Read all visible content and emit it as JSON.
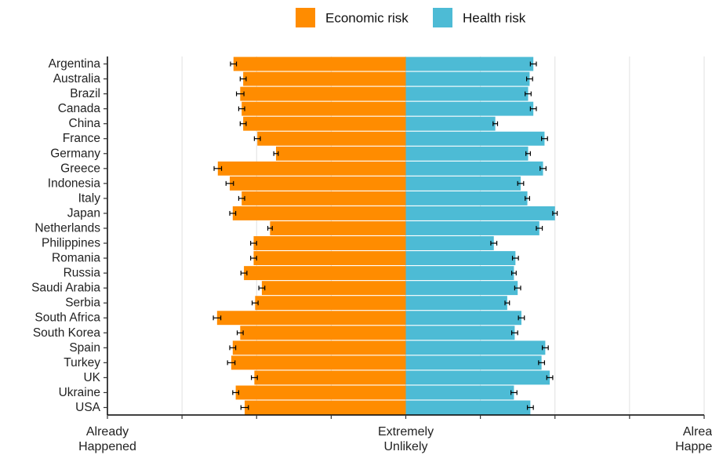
{
  "chart_data": {
    "type": "bar",
    "orientation": "horizontal-diverging",
    "categories": [
      "Argentina",
      "Australia",
      "Brazil",
      "Canada",
      "China",
      "France",
      "Germany",
      "Greece",
      "Indonesia",
      "Italy",
      "Japan",
      "Netherlands",
      "Philippines",
      "Romania",
      "Russia",
      "Saudi Arabia",
      "Serbia",
      "South Africa",
      "South Korea",
      "Spain",
      "Turkey",
      "UK",
      "Ukraine",
      "USA"
    ],
    "series": [
      {
        "name": "Economic risk",
        "color": "#FF8C00",
        "values": [
          2.31,
          2.18,
          2.22,
          2.2,
          2.18,
          1.99,
          1.74,
          2.52,
          2.36,
          2.2,
          2.32,
          1.82,
          2.04,
          2.04,
          2.17,
          1.93,
          2.02,
          2.53,
          2.22,
          2.32,
          2.34,
          2.03,
          2.28,
          2.16
        ],
        "errors": [
          0.04,
          0.04,
          0.05,
          0.04,
          0.04,
          0.04,
          0.03,
          0.05,
          0.05,
          0.04,
          0.04,
          0.03,
          0.04,
          0.04,
          0.04,
          0.04,
          0.04,
          0.05,
          0.04,
          0.04,
          0.05,
          0.04,
          0.04,
          0.05
        ]
      },
      {
        "name": "Health risk",
        "color": "#4DBBD5",
        "values": [
          1.71,
          1.66,
          1.64,
          1.71,
          1.2,
          1.86,
          1.64,
          1.84,
          1.54,
          1.63,
          2.0,
          1.79,
          1.18,
          1.47,
          1.45,
          1.5,
          1.36,
          1.55,
          1.46,
          1.87,
          1.82,
          1.93,
          1.45,
          1.67
        ],
        "errors": [
          0.04,
          0.04,
          0.04,
          0.04,
          0.03,
          0.04,
          0.03,
          0.04,
          0.04,
          0.03,
          0.03,
          0.04,
          0.04,
          0.04,
          0.03,
          0.04,
          0.03,
          0.04,
          0.04,
          0.04,
          0.04,
          0.04,
          0.04,
          0.04
        ]
      }
    ],
    "xlim": [
      -4,
      4
    ],
    "x_ticks": [
      -4,
      -3,
      -2,
      -1,
      0,
      1,
      2,
      3,
      4
    ],
    "x_tick_labels": [
      {
        "value": -4,
        "line1": "Already",
        "line2": "Happened"
      },
      {
        "value": 0,
        "line1": "Extremely",
        "line2": "Unlikely"
      },
      {
        "value": 4,
        "line1": "Already",
        "line2": "Happened"
      }
    ],
    "legend_position": "top-center",
    "grid": "vertical-major",
    "title": "",
    "xlabel": "",
    "ylabel": ""
  }
}
